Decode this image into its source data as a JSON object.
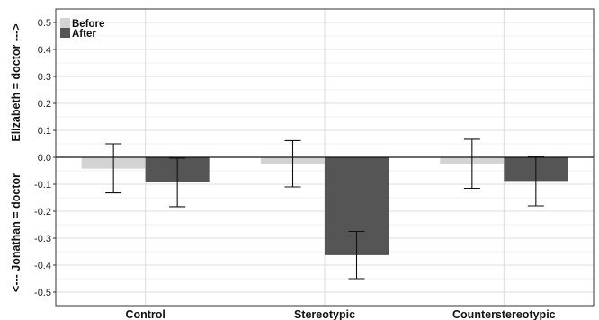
{
  "chart_data": {
    "type": "bar",
    "categories": [
      "Control",
      "Stereotypic",
      "Counterstereotypic"
    ],
    "series": [
      {
        "name": "Before",
        "color": "#d3d3d3",
        "values": [
          -0.042,
          -0.025,
          -0.023
        ],
        "error_low": [
          -0.132,
          -0.11,
          -0.115
        ],
        "error_high": [
          0.05,
          0.062,
          0.067
        ]
      },
      {
        "name": "After",
        "color": "#555555",
        "values": [
          -0.092,
          -0.363,
          -0.088
        ],
        "error_low": [
          -0.183,
          -0.45,
          -0.18
        ],
        "error_high": [
          -0.003,
          -0.275,
          0.003
        ]
      }
    ],
    "ylabel_top": "Elizabeth = doctor --->",
    "ylabel_bottom": "<--- Jonathan = doctor",
    "ylim": [
      -0.55,
      0.55
    ],
    "yticks": [
      -0.5,
      -0.4,
      -0.3,
      -0.2,
      -0.1,
      0.0,
      0.1,
      0.2,
      0.3,
      0.4,
      0.5
    ],
    "ytick_labels": [
      "-0.5",
      "-0.4",
      "-0.3",
      "-0.2",
      "-0.1",
      "0.0",
      "0.1",
      "0.2",
      "0.3",
      "0.4",
      "0.5"
    ],
    "grid": true,
    "legend_position": "top-left",
    "zero_line": true
  }
}
